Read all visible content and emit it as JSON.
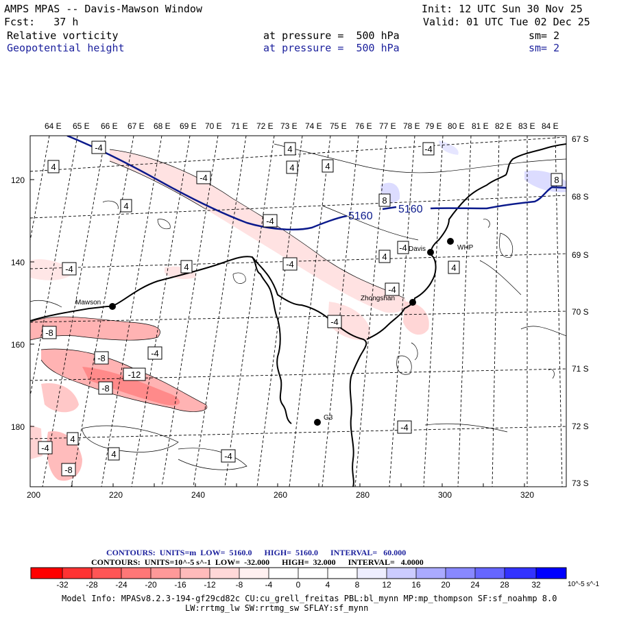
{
  "header": {
    "app_title": "AMPS MPAS -- Davis-Mawson Window",
    "init": "Init: 12 UTC Sun 30 Nov 25",
    "fcst": "Fcst:   37 h",
    "valid": "Valid: 01 UTC Tue 02 Dec 25",
    "field1": "Relative vorticity",
    "field1_level": "at pressure =  500 hPa",
    "field1_sm": "sm= 2",
    "field2": "Geopotential height",
    "field2_level": "at pressure =  500 hPa",
    "field2_sm": "sm= 2"
  },
  "map": {
    "top_axis_labels": [
      "64 E",
      "65 E",
      "66 E",
      "67 E",
      "68 E",
      "69 E",
      "70 E",
      "71 E",
      "72 E",
      "73 E",
      "74 E",
      "75 E",
      "76 E",
      "77 E",
      "78 E",
      "79 E",
      "80 E",
      "81 E",
      "82 E",
      "83 E",
      "84 E"
    ],
    "right_axis_labels": [
      "67 S",
      "68 S",
      "69 S",
      "70 S",
      "71 S",
      "72 S",
      "73 S"
    ],
    "left_axis_labels": [
      "120",
      "140",
      "160",
      "180"
    ],
    "bottom_axis_labels": [
      "200",
      "220",
      "240",
      "260",
      "280",
      "300",
      "320"
    ],
    "height_labels": [
      "5160",
      "5160"
    ],
    "vorticity_labels": [
      "-4",
      "4",
      "-4",
      "4",
      "-4",
      "4",
      "4",
      "-4",
      "4",
      "-4",
      "-4",
      "4",
      "-4",
      "-4",
      "-8",
      "8",
      "8",
      "-8",
      "-4",
      "-12",
      "-8",
      "-4",
      "4",
      "-4",
      "4",
      "-4",
      "-4",
      "-8",
      "4",
      "4"
    ],
    "stations": [
      "Davis",
      "WHP",
      "Mawson",
      "Zhongshan",
      "G3"
    ],
    "colors": {
      "height_contour": "#0b1a8c",
      "coast": "#000000",
      "grid": "#000000"
    }
  },
  "legend": {
    "contours_line1": "CONTOURS:  UNITS=m  LOW=  5160.0      HIGH=  5160.0      INTERVAL=   60.000",
    "contours_line2": "CONTOURS:  UNITS=10^-5 s^-1  LOW=  -32.000      HIGH=  32.000      INTERVAL=   4.0000",
    "ticks": [
      "-32",
      "-28",
      "-24",
      "-20",
      "-16",
      "-12",
      "-8",
      "-4",
      "0",
      "4",
      "8",
      "12",
      "16",
      "20",
      "24",
      "28",
      "32"
    ],
    "units": "10^-5 s^-1",
    "colors": [
      "#ff0000",
      "#ff3333",
      "#ff5555",
      "#ff7777",
      "#ff9999",
      "#ffbbbb",
      "#ffd8d8",
      "#fff0f0",
      "#ffffff",
      "#ffffff",
      "#eeeeff",
      "#ccccff",
      "#aaaaff",
      "#8888ff",
      "#6666ff",
      "#3333ff",
      "#0000ff"
    ]
  },
  "footer": {
    "model_info": "Model Info: MPASv8.2.3-194-gf29cd82c CU:cu_grell_freitas PBL:bl_mynn MP:mp_thompson SF:sf_noahmp 8.0",
    "model_info2": "LW:rrtmg_lw SW:rrtmg_sw SFLAY:sf_mynn"
  }
}
